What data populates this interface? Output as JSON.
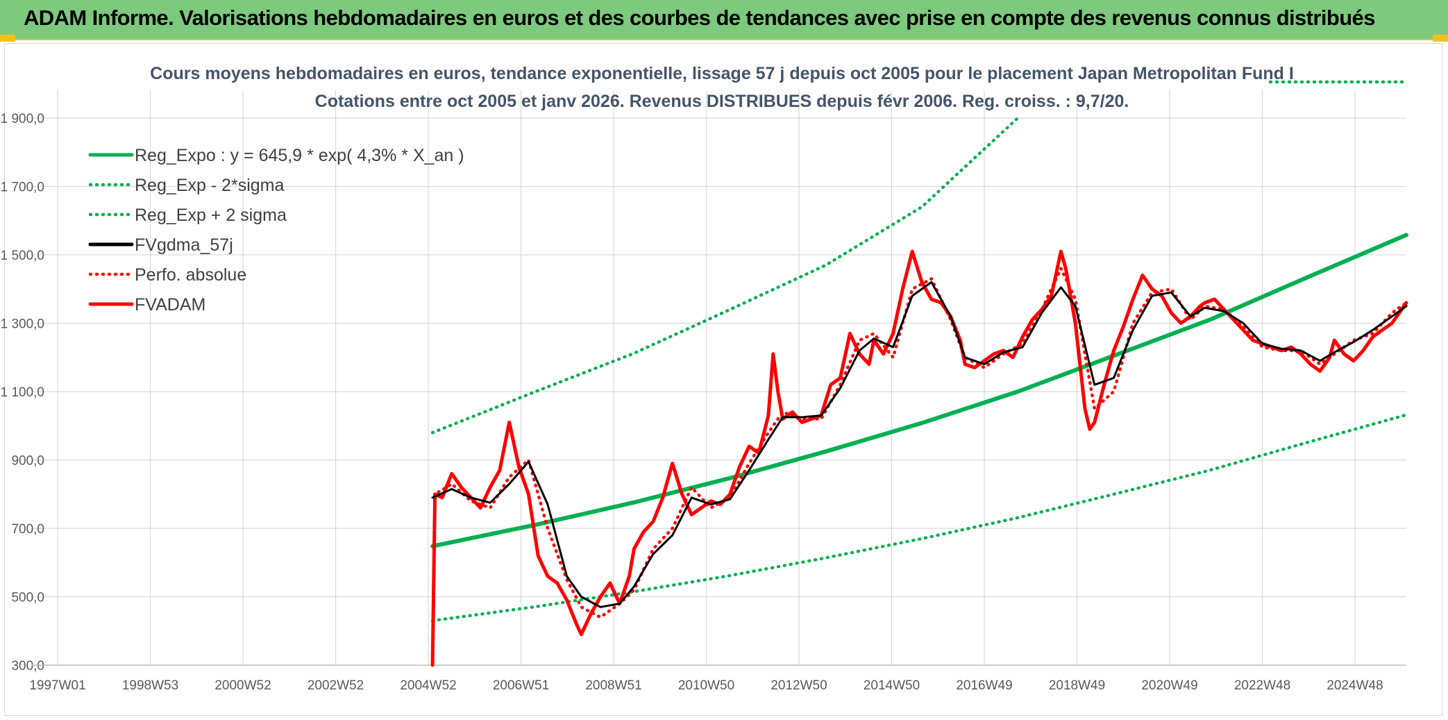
{
  "banner": {
    "title": "ADAM Informe. Valorisations hebdomadaires en euros et des courbes de tendances avec prise en compte des revenus connus distribués"
  },
  "colors": {
    "banner_bg": "#7dc97d",
    "green": "#00b050",
    "red": "#ff0000",
    "black": "#000000",
    "title_text": "#44546a",
    "grid": "#d9d9d9"
  },
  "chart_data": {
    "type": "line",
    "title_line1": "Cours moyens hebdomadaires en euros, tendance exponentielle, lissage 57 j depuis oct 2005 pour le placement Japan Metropolitan Fund I",
    "title_line2": "Cotations entre oct 2005 et janv 2026. Revenus DISTRIBUES depuis févr 2006. Reg. croiss. : 9,7/20.",
    "x_ticks": [
      "1997W01",
      "1998W53",
      "2000W52",
      "2002W52",
      "2004W52",
      "2006W51",
      "2008W51",
      "2010W50",
      "2012W50",
      "2014W50",
      "2016W49",
      "2018W49",
      "2020W49",
      "2022W48",
      "2024W48"
    ],
    "xlim": [
      1997.0,
      2026.1
    ],
    "ylim": [
      300,
      1900
    ],
    "y_ticks": [
      300,
      500,
      700,
      900,
      1100,
      1300,
      1500,
      1700,
      1900
    ],
    "y_tick_labels": [
      "300,0",
      "500,0",
      "700,0",
      "900,0",
      "1 100,0",
      "1 300,0",
      "1 500,0",
      "1 700,0",
      "1 900,0"
    ],
    "grid": true,
    "legend_position": "top-left",
    "series": [
      {
        "name": "Reg_Expo : y = 645,9 * exp( 4,3% *  X_an )",
        "style": "solid",
        "color": "#00b050",
        "x": [
          2005.8,
          2008.0,
          2010.0,
          2012.0,
          2014.0,
          2016.0,
          2018.0,
          2020.0,
          2022.0,
          2024.0,
          2026.1
        ],
        "y": [
          648,
          712,
          776,
          847,
          925,
          1008,
          1100,
          1205,
          1310,
          1432,
          1558
        ]
      },
      {
        "name": "Reg_Exp - 2*sigma",
        "style": "dotted",
        "color": "#00b050",
        "x": [
          2005.8,
          2008.0,
          2010.0,
          2012.0,
          2014.0,
          2016.0,
          2018.0,
          2020.0,
          2022.0,
          2024.0,
          2026.1
        ],
        "y": [
          430,
          472,
          515,
          562,
          614,
          670,
          731,
          800,
          870,
          950,
          1032
        ]
      },
      {
        "name": "Reg_Exp + 2 sigma",
        "style": "dotted",
        "color": "#00b050",
        "x": [
          2005.8,
          2008.0,
          2010.0,
          2012.0,
          2014.0,
          2016.0,
          2018.0
        ],
        "y": [
          980,
          1103,
          1212,
          1340,
          1470,
          1640,
          1900
        ]
      },
      {
        "name": "FVgdma_57j",
        "style": "solid",
        "color": "#000000",
        "x": [
          2005.8,
          2006.2,
          2006.6,
          2007.0,
          2007.4,
          2007.8,
          2008.2,
          2008.6,
          2008.9,
          2009.3,
          2009.7,
          2010.0,
          2010.4,
          2010.8,
          2011.2,
          2011.6,
          2012.0,
          2012.4,
          2012.8,
          2013.1,
          2013.5,
          2013.9,
          2014.3,
          2014.7,
          2015.0,
          2015.4,
          2015.8,
          2016.2,
          2016.6,
          2016.9,
          2017.3,
          2017.7,
          2018.1,
          2018.5,
          2018.9,
          2019.2,
          2019.6,
          2020.0,
          2020.4,
          2020.8,
          2021.2,
          2021.6,
          2021.9,
          2022.3,
          2022.7,
          2023.1,
          2023.5,
          2023.9,
          2024.3,
          2024.6,
          2025.0,
          2025.4,
          2025.8,
          2026.1
        ],
        "y": [
          790,
          815,
          790,
          775,
          830,
          895,
          770,
          560,
          500,
          470,
          480,
          530,
          625,
          680,
          790,
          770,
          785,
          870,
          960,
          1025,
          1025,
          1030,
          1110,
          1220,
          1255,
          1230,
          1380,
          1420,
          1320,
          1200,
          1180,
          1215,
          1230,
          1330,
          1405,
          1350,
          1120,
          1140,
          1280,
          1380,
          1390,
          1320,
          1345,
          1335,
          1300,
          1240,
          1225,
          1220,
          1190,
          1215,
          1245,
          1280,
          1320,
          1350
        ]
      },
      {
        "name": "Perfo. absolue",
        "style": "dotted",
        "color": "#ff0000",
        "x": [
          2005.8,
          2005.85,
          2006.2,
          2006.6,
          2007.0,
          2007.4,
          2007.8,
          2008.2,
          2008.6,
          2008.9,
          2009.3,
          2009.7,
          2010.0,
          2010.4,
          2010.8,
          2011.2,
          2011.6,
          2012.0,
          2012.4,
          2012.8,
          2013.1,
          2013.5,
          2013.9,
          2014.3,
          2014.7,
          2015.0,
          2015.4,
          2015.8,
          2016.2,
          2016.6,
          2016.9,
          2017.3,
          2017.7,
          2018.1,
          2018.5,
          2018.9,
          2019.2,
          2019.6,
          2020.0,
          2020.4,
          2020.8,
          2021.2,
          2021.6,
          2021.9,
          2022.3,
          2022.7,
          2023.1,
          2023.5,
          2023.9,
          2024.3,
          2024.6,
          2025.0,
          2025.4,
          2025.8,
          2026.1
        ],
        "y": [
          300,
          800,
          830,
          780,
          760,
          850,
          900,
          700,
          550,
          470,
          440,
          480,
          520,
          640,
          700,
          820,
          760,
          790,
          890,
          980,
          1040,
          1020,
          1020,
          1120,
          1250,
          1270,
          1200,
          1400,
          1430,
          1310,
          1200,
          1170,
          1210,
          1240,
          1340,
          1460,
          1370,
          1050,
          1100,
          1300,
          1390,
          1400,
          1310,
          1350,
          1340,
          1290,
          1230,
          1220,
          1220,
          1180,
          1210,
          1250,
          1270,
          1330,
          1360
        ]
      },
      {
        "name": "FVADAM",
        "style": "solid",
        "color": "#ff0000",
        "x": [
          2005.8,
          2005.85,
          2006.0,
          2006.2,
          2006.4,
          2006.6,
          2006.8,
          2007.0,
          2007.2,
          2007.4,
          2007.6,
          2007.8,
          2008.0,
          2008.2,
          2008.4,
          2008.6,
          2008.8,
          2008.9,
          2009.1,
          2009.3,
          2009.5,
          2009.7,
          2009.9,
          2010.0,
          2010.2,
          2010.4,
          2010.6,
          2010.8,
          2011.0,
          2011.2,
          2011.4,
          2011.6,
          2011.8,
          2012.0,
          2012.2,
          2012.4,
          2012.6,
          2012.8,
          2012.9,
          2013.0,
          2013.1,
          2013.3,
          2013.5,
          2013.7,
          2013.9,
          2014.1,
          2014.3,
          2014.5,
          2014.7,
          2014.9,
          2015.0,
          2015.2,
          2015.4,
          2015.6,
          2015.8,
          2016.0,
          2016.2,
          2016.4,
          2016.6,
          2016.8,
          2016.9,
          2017.1,
          2017.3,
          2017.5,
          2017.7,
          2017.9,
          2018.1,
          2018.3,
          2018.5,
          2018.7,
          2018.9,
          2019.0,
          2019.2,
          2019.4,
          2019.5,
          2019.6,
          2019.8,
          2020.0,
          2020.2,
          2020.4,
          2020.6,
          2020.8,
          2021.0,
          2021.2,
          2021.4,
          2021.6,
          2021.8,
          2021.9,
          2022.1,
          2022.3,
          2022.5,
          2022.7,
          2022.9,
          2023.1,
          2023.3,
          2023.5,
          2023.7,
          2023.9,
          2024.1,
          2024.3,
          2024.5,
          2024.6,
          2024.8,
          2025.0,
          2025.2,
          2025.4,
          2025.6,
          2025.8,
          2026.0,
          2026.1
        ],
        "y": [
          300,
          800,
          790,
          860,
          820,
          790,
          760,
          820,
          870,
          1010,
          880,
          800,
          620,
          560,
          540,
          490,
          420,
          390,
          450,
          500,
          540,
          480,
          560,
          640,
          690,
          720,
          790,
          890,
          800,
          740,
          760,
          780,
          770,
          800,
          880,
          940,
          920,
          1030,
          1210,
          1100,
          1020,
          1040,
          1010,
          1020,
          1030,
          1120,
          1140,
          1270,
          1210,
          1180,
          1250,
          1210,
          1270,
          1400,
          1510,
          1420,
          1370,
          1360,
          1320,
          1250,
          1180,
          1170,
          1190,
          1210,
          1220,
          1200,
          1260,
          1310,
          1340,
          1380,
          1510,
          1460,
          1300,
          1050,
          990,
          1010,
          1120,
          1220,
          1290,
          1370,
          1440,
          1400,
          1380,
          1330,
          1300,
          1320,
          1350,
          1360,
          1370,
          1340,
          1310,
          1280,
          1250,
          1240,
          1230,
          1220,
          1230,
          1210,
          1180,
          1160,
          1200,
          1250,
          1210,
          1190,
          1220,
          1260,
          1280,
          1300,
          1340,
          1360
        ]
      }
    ]
  }
}
